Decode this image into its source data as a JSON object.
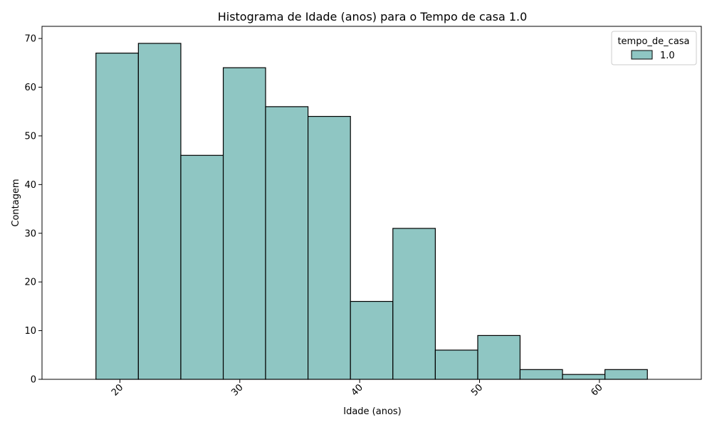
{
  "chart_data": {
    "type": "bar",
    "title": "Histograma de Idade (anos) para o Tempo de casa 1.0",
    "xlabel": "Idade (anos)",
    "ylabel": "Contagem",
    "bin_edges": [
      18,
      21.54,
      25.08,
      28.62,
      32.15,
      35.69,
      39.23,
      42.77,
      46.31,
      49.85,
      53.38,
      56.92,
      60.46,
      64
    ],
    "values": [
      67,
      69,
      46,
      64,
      56,
      54,
      16,
      31,
      6,
      9,
      2,
      1,
      2
    ],
    "xlim": [
      13.5,
      68.5
    ],
    "ylim": [
      0,
      72.5
    ],
    "x_ticks": [
      "20",
      "30",
      "40",
      "50",
      "60"
    ],
    "y_ticks": [
      "0",
      "10",
      "20",
      "30",
      "40",
      "50",
      "60",
      "70"
    ],
    "x_tick_rotation": -45,
    "grid": false,
    "bar_color": "#8fc6c3",
    "edge_color": "#000000",
    "legend": {
      "title": "tempo_de_casa",
      "entries": [
        {
          "label": "1.0",
          "color": "#8fc6c3"
        }
      ],
      "placement": "top-right"
    }
  }
}
